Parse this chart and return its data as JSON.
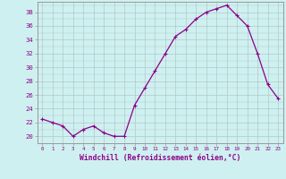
{
  "x": [
    0,
    1,
    2,
    3,
    4,
    5,
    6,
    7,
    8,
    9,
    10,
    11,
    12,
    13,
    14,
    15,
    16,
    17,
    18,
    19,
    20,
    21,
    22,
    23
  ],
  "y": [
    22.5,
    22.0,
    21.5,
    20.0,
    21.0,
    21.5,
    20.5,
    20.0,
    20.0,
    24.5,
    27.0,
    29.5,
    32.0,
    34.5,
    35.5,
    37.0,
    38.0,
    38.5,
    39.0,
    37.5,
    36.0,
    32.0,
    27.5,
    25.5
  ],
  "line_color": "#8b008b",
  "marker": "+",
  "marker_size": 3.5,
  "marker_lw": 0.8,
  "bg_color": "#cff0f0",
  "grid_color": "#b0c8c8",
  "ylabel_ticks": [
    20,
    22,
    24,
    26,
    28,
    30,
    32,
    34,
    36,
    38
  ],
  "ylim": [
    19.0,
    39.5
  ],
  "xlim": [
    -0.5,
    23.5
  ],
  "xlabel": "Windchill (Refroidissement éolien,°C)",
  "xlabel_color": "#8b008b",
  "tick_label_color": "#8b008b",
  "xtick_fontsize": 4.2,
  "ytick_fontsize": 5.2,
  "xlabel_fontsize": 5.8
}
